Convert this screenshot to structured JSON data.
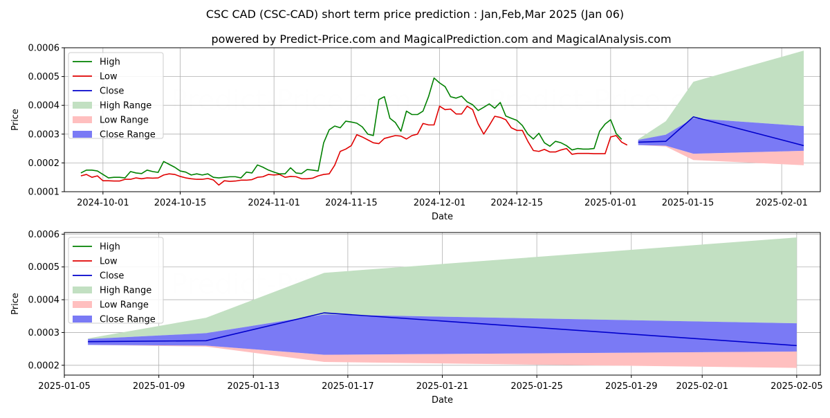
{
  "title": "CSC CAD (CSC-CAD) short term price prediction : Jan,Feb,Mar 2025 (Jan 06)",
  "subtitle": "powered by Predict-Price.com and MagicalPrediction.com and MagicalAnalysis.com",
  "watermark": "Predict-Price.com",
  "colors": {
    "high": "#008000",
    "low": "#e00000",
    "close": "#0000cc",
    "high_range": "#c2e0c2",
    "low_range": "#ffbfbf",
    "close_range": "#7a7af5"
  },
  "chart_data": [
    {
      "type": "line",
      "panel": "top",
      "xlabel": "Date",
      "ylabel": "Price",
      "xlim": [
        "2024-09-24",
        "2025-02-08"
      ],
      "ylim": [
        0.0001,
        0.0006
      ],
      "x_ticks": [
        "2024-10-01",
        "2024-10-15",
        "2024-11-01",
        "2024-11-15",
        "2024-12-01",
        "2024-12-15",
        "2025-01-01",
        "2025-01-15",
        "2025-02-01"
      ],
      "y_ticks": [
        "0.0001",
        "0.0002",
        "0.0003",
        "0.0004",
        "0.0005",
        "0.0006"
      ],
      "legend": [
        "High",
        "Low",
        "Close",
        "High Range",
        "Low Range",
        "Close Range"
      ],
      "legend_position": "top-left",
      "history_start": "2024-09-27",
      "history_high": [
        0.000165,
        0.000175,
        0.000175,
        0.000172,
        0.00016,
        0.000148,
        0.00015,
        0.00015,
        0.000148,
        0.00017,
        0.000165,
        0.000163,
        0.000175,
        0.00017,
        0.000167,
        0.000205,
        0.000195,
        0.000185,
        0.000172,
        0.000168,
        0.000158,
        0.000162,
        0.000158,
        0.000162,
        0.00015,
        0.000148,
        0.00015,
        0.000152,
        0.000152,
        0.000148,
        0.000168,
        0.000165,
        0.000193,
        0.000185,
        0.000175,
        0.000168,
        0.000162,
        0.000162,
        0.000183,
        0.000165,
        0.000163,
        0.000177,
        0.000175,
        0.000172,
        0.00027,
        0.000315,
        0.000328,
        0.000322,
        0.000345,
        0.000342,
        0.000338,
        0.000325,
        0.0003,
        0.000295,
        0.00042,
        0.00043,
        0.000355,
        0.00034,
        0.00031,
        0.00038,
        0.000368,
        0.000368,
        0.00038,
        0.00043,
        0.000495,
        0.000478,
        0.000465,
        0.00043,
        0.000425,
        0.000432,
        0.000412,
        0.000402,
        0.000382,
        0.000393,
        0.000405,
        0.00039,
        0.00041,
        0.000363,
        0.000355,
        0.000348,
        0.00033,
        0.0003,
        0.000283,
        0.000303,
        0.00027,
        0.000258,
        0.000275,
        0.00027,
        0.00026,
        0.000245,
        0.00025,
        0.000248,
        0.000248,
        0.00025,
        0.00031,
        0.000335,
        0.00035,
        0.000302,
        0.000282
      ],
      "history_low": [
        0.000155,
        0.00016,
        0.00015,
        0.000155,
        0.000138,
        0.000138,
        0.000137,
        0.000137,
        0.000143,
        0.000143,
        0.000148,
        0.000145,
        0.000148,
        0.000147,
        0.000148,
        0.000158,
        0.000162,
        0.00016,
        0.000153,
        0.000148,
        0.000145,
        0.000143,
        0.000143,
        0.000146,
        0.000141,
        0.000123,
        0.000138,
        0.000136,
        0.000137,
        0.00014,
        0.00014,
        0.000142,
        0.00015,
        0.000152,
        0.00016,
        0.000158,
        0.00016,
        0.00015,
        0.000153,
        0.000152,
        0.000145,
        0.000145,
        0.000147,
        0.000155,
        0.00016,
        0.000162,
        0.000192,
        0.00024,
        0.000248,
        0.00026,
        0.000298,
        0.00029,
        0.00028,
        0.00027,
        0.000267,
        0.000285,
        0.00029,
        0.000295,
        0.000293,
        0.000283,
        0.000295,
        0.0003,
        0.000337,
        0.000332,
        0.000332,
        0.000397,
        0.000385,
        0.000387,
        0.00037,
        0.00037,
        0.000397,
        0.000385,
        0.000335,
        0.0003,
        0.00033,
        0.000362,
        0.000358,
        0.00035,
        0.000322,
        0.000313,
        0.000313,
        0.000275,
        0.000243,
        0.00024,
        0.000247,
        0.000238,
        0.000238,
        0.000245,
        0.00025,
        0.00023,
        0.000233,
        0.000233,
        0.000233,
        0.000232,
        0.000232,
        0.000232,
        0.00029,
        0.000295,
        0.000272,
        0.000262
      ],
      "forecast_dates": [
        "2025-01-06",
        "2025-01-11",
        "2025-01-16",
        "2025-02-05"
      ],
      "forecast_close": [
        0.000272,
        0.000275,
        0.00036,
        0.00026
      ],
      "high_range_upper": [
        0.000282,
        0.000345,
        0.000482,
        0.00059
      ],
      "low_range_lower": [
        0.000262,
        0.000257,
        0.00021,
        0.000192
      ],
      "close_range_upper": [
        0.00028,
        0.000298,
        0.000355,
        0.000328
      ],
      "close_range_lower": [
        0.000262,
        0.00026,
        0.000232,
        0.000242
      ]
    },
    {
      "type": "area",
      "panel": "bottom",
      "xlabel": "Date",
      "ylabel": "Price",
      "xlim": [
        "2025-01-05",
        "2025-02-06"
      ],
      "ylim": [
        0.00017,
        0.000605
      ],
      "x_ticks": [
        "2025-01-05",
        "2025-01-09",
        "2025-01-13",
        "2025-01-17",
        "2025-01-21",
        "2025-01-25",
        "2025-01-29",
        "2025-02-01",
        "2025-02-05"
      ],
      "y_ticks": [
        "0.0002",
        "0.0003",
        "0.0004",
        "0.0005",
        "0.0006"
      ],
      "legend": [
        "High",
        "Low",
        "Close",
        "High Range",
        "Low Range",
        "Close Range"
      ],
      "legend_position": "top-left",
      "forecast_dates": [
        "2025-01-06",
        "2025-01-11",
        "2025-01-16",
        "2025-02-05"
      ],
      "forecast_close": [
        0.000272,
        0.000275,
        0.00036,
        0.00026
      ],
      "high_range_upper": [
        0.000282,
        0.000345,
        0.000482,
        0.00059
      ],
      "low_range_lower": [
        0.000262,
        0.000257,
        0.00021,
        0.000192
      ],
      "close_range_upper": [
        0.00028,
        0.000298,
        0.000355,
        0.000328
      ],
      "close_range_lower": [
        0.000262,
        0.00026,
        0.000232,
        0.000242
      ]
    }
  ]
}
